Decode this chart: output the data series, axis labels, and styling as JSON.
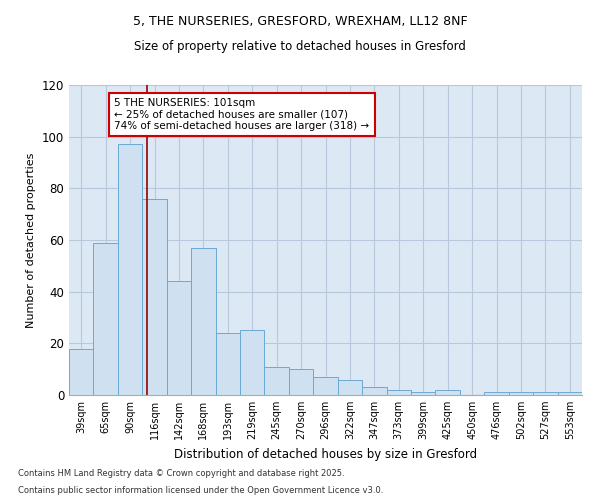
{
  "title1": "5, THE NURSERIES, GRESFORD, WREXHAM, LL12 8NF",
  "title2": "Size of property relative to detached houses in Gresford",
  "xlabel": "Distribution of detached houses by size in Gresford",
  "ylabel": "Number of detached properties",
  "footnote1": "Contains HM Land Registry data © Crown copyright and database right 2025.",
  "footnote2": "Contains public sector information licensed under the Open Government Licence v3.0.",
  "categories": [
    "39sqm",
    "65sqm",
    "90sqm",
    "116sqm",
    "142sqm",
    "168sqm",
    "193sqm",
    "219sqm",
    "245sqm",
    "270sqm",
    "296sqm",
    "322sqm",
    "347sqm",
    "373sqm",
    "399sqm",
    "425sqm",
    "450sqm",
    "476sqm",
    "502sqm",
    "527sqm",
    "553sqm"
  ],
  "bar_heights": [
    18,
    59,
    97,
    76,
    44,
    57,
    24,
    25,
    11,
    10,
    7,
    6,
    3,
    2,
    1,
    2,
    0,
    1,
    1,
    1,
    1
  ],
  "bar_color": "#cfe0f0",
  "bar_edge_color": "#6aaad4",
  "grid_color": "#b8c8dc",
  "background_color": "#dce8f4",
  "vline_color": "#990000",
  "annotation_border_color": "#cc0000",
  "annotation_text_line1": "5 THE NURSERIES: 101sqm",
  "annotation_text_line2": "← 25% of detached houses are smaller (107)",
  "annotation_text_line3": "74% of semi-detached houses are larger (318) →",
  "vline_x_index": 2.7,
  "ylim_max": 120,
  "yticks": [
    0,
    20,
    40,
    60,
    80,
    100,
    120
  ]
}
